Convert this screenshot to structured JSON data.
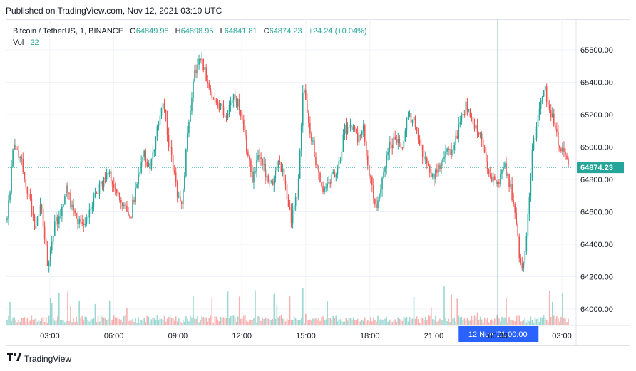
{
  "published": "Published on TradingView.com, Nov 12, 2021 03:10 UTC",
  "legend": {
    "symbol": "Bitcoin / TetherUS, 1, BINANCE",
    "o_label": "O",
    "o_value": "64849.98",
    "h_label": "H",
    "h_value": "64898.95",
    "l_label": "L",
    "l_value": "64841.81",
    "c_label": "C",
    "c_value": "64874.23",
    "change": "+24.24 (+0.04%)",
    "vol_label": "Vol",
    "vol_value": "22"
  },
  "brand": {
    "name": "TradingView"
  },
  "colors": {
    "up": "#26a69a",
    "down": "#ef5350",
    "price_line": "#26a69a",
    "crosshair": "#2962ff",
    "grid": "#f0f3fa"
  },
  "chart_data": {
    "type": "candlestick",
    "timeframe": "1 minute",
    "x_ticks": [
      "03:00",
      "06:00",
      "09:00",
      "12:00",
      "15:00",
      "18:00",
      "21:00",
      "00:00",
      "03:00"
    ],
    "x_tick_times": [
      2,
      5,
      8,
      11,
      14,
      17,
      20,
      23,
      26
    ],
    "y_ticks": [
      64000,
      64200,
      64400,
      64600,
      64800,
      65000,
      65200,
      65400,
      65600
    ],
    "y_tick_labels": [
      "64000.00",
      "64200.00",
      "64400.00",
      "64600.00",
      "64800.00",
      "65000.00",
      "65200.00",
      "65400.00",
      "65600.00"
    ],
    "ylim": [
      63880,
      65780
    ],
    "xlim": [
      0.0,
      26.6
    ],
    "last_price": 64874.23,
    "last_price_label": "64874.23",
    "crosshair_time": 23.0,
    "crosshair_label": "12 Nov '21   00:00",
    "close_path": [
      [
        0.0,
        64550
      ],
      [
        0.3,
        65000
      ],
      [
        0.6,
        64950
      ],
      [
        1.0,
        64700
      ],
      [
        1.3,
        64500
      ],
      [
        1.6,
        64650
      ],
      [
        1.9,
        64280
      ],
      [
        2.2,
        64500
      ],
      [
        2.5,
        64600
      ],
      [
        2.8,
        64750
      ],
      [
        3.1,
        64600
      ],
      [
        3.5,
        64500
      ],
      [
        3.8,
        64600
      ],
      [
        4.1,
        64700
      ],
      [
        4.5,
        64780
      ],
      [
        4.8,
        64850
      ],
      [
        5.1,
        64700
      ],
      [
        5.4,
        64650
      ],
      [
        5.8,
        64580
      ],
      [
        6.1,
        64800
      ],
      [
        6.4,
        64950
      ],
      [
        6.7,
        64850
      ],
      [
        7.0,
        65100
      ],
      [
        7.3,
        65300
      ],
      [
        7.6,
        65000
      ],
      [
        8.0,
        64700
      ],
      [
        8.2,
        64650
      ],
      [
        8.5,
        65150
      ],
      [
        8.8,
        65450
      ],
      [
        9.1,
        65550
      ],
      [
        9.4,
        65400
      ],
      [
        9.7,
        65300
      ],
      [
        10.0,
        65250
      ],
      [
        10.3,
        65200
      ],
      [
        10.6,
        65300
      ],
      [
        10.9,
        65250
      ],
      [
        11.2,
        65000
      ],
      [
        11.5,
        64800
      ],
      [
        11.8,
        64950
      ],
      [
        12.1,
        64850
      ],
      [
        12.4,
        64750
      ],
      [
        12.7,
        64950
      ],
      [
        13.0,
        64800
      ],
      [
        13.3,
        64550
      ],
      [
        13.6,
        64700
      ],
      [
        13.9,
        65400
      ],
      [
        14.2,
        65100
      ],
      [
        14.5,
        64900
      ],
      [
        14.8,
        64750
      ],
      [
        15.1,
        64800
      ],
      [
        15.5,
        64850
      ],
      [
        15.8,
        65100
      ],
      [
        16.1,
        65150
      ],
      [
        16.4,
        65050
      ],
      [
        16.7,
        65100
      ],
      [
        17.0,
        64800
      ],
      [
        17.3,
        64650
      ],
      [
        17.6,
        64800
      ],
      [
        17.9,
        65000
      ],
      [
        18.2,
        65050
      ],
      [
        18.5,
        65000
      ],
      [
        18.8,
        65200
      ],
      [
        19.1,
        65150
      ],
      [
        19.4,
        65000
      ],
      [
        19.7,
        64900
      ],
      [
        20.0,
        64800
      ],
      [
        20.3,
        64900
      ],
      [
        20.6,
        65000
      ],
      [
        20.9,
        64950
      ],
      [
        21.2,
        65150
      ],
      [
        21.5,
        65250
      ],
      [
        21.8,
        65150
      ],
      [
        22.1,
        65100
      ],
      [
        22.4,
        64950
      ],
      [
        22.7,
        64800
      ],
      [
        23.0,
        64780
      ],
      [
        23.3,
        64900
      ],
      [
        23.6,
        64750
      ],
      [
        23.9,
        64500
      ],
      [
        24.1,
        64200
      ],
      [
        24.3,
        64350
      ],
      [
        24.6,
        64950
      ],
      [
        24.9,
        65200
      ],
      [
        25.2,
        65350
      ],
      [
        25.5,
        65200
      ],
      [
        25.8,
        65050
      ],
      [
        26.1,
        64950
      ],
      [
        26.3,
        64875
      ]
    ],
    "volume_scale_max_bar": "tallest spikes near 09:00, 14:30, 21:00 and 23:45"
  }
}
